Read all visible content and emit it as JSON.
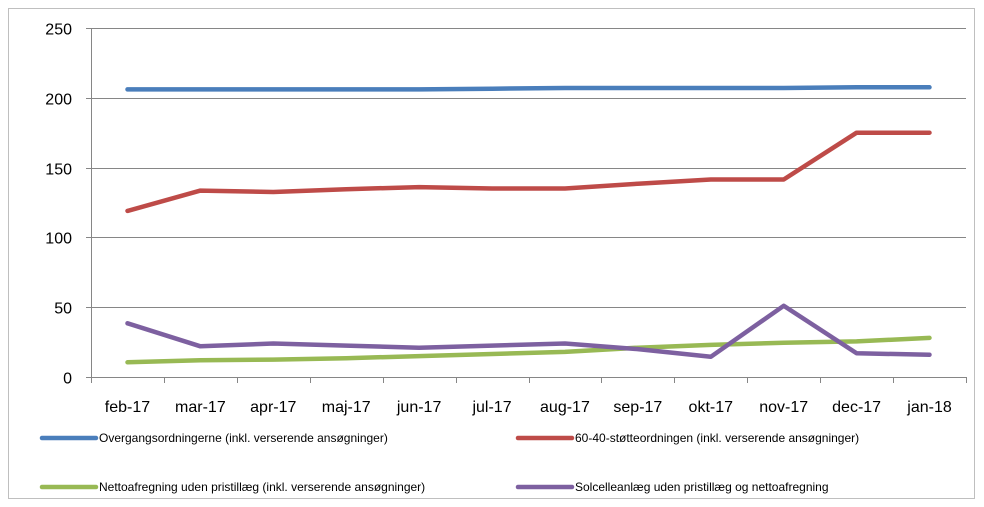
{
  "chart_data": {
    "type": "line",
    "title": "",
    "xlabel": "",
    "ylabel": "",
    "categories": [
      "feb-17",
      "mar-17",
      "apr-17",
      "maj-17",
      "jun-17",
      "jul-17",
      "aug-17",
      "sep-17",
      "okt-17",
      "nov-17",
      "dec-17",
      "jan-18"
    ],
    "ylim": [
      0,
      250
    ],
    "yticks": [
      0,
      50,
      100,
      150,
      200,
      250
    ],
    "grid": true,
    "legend_position": "bottom",
    "series": [
      {
        "name": "Overgangsordningerne (inkl. verserende ansøgninger)",
        "color": "#4a7ebb",
        "values": [
          206,
          206,
          206,
          206,
          206,
          206.5,
          207,
          207,
          207,
          207,
          207.5,
          207.5
        ]
      },
      {
        "name": "60-40-støtteordningen (inkl. verserende ansøgninger)",
        "color": "#be4b48",
        "values": [
          119,
          133.5,
          132.5,
          134.5,
          136,
          135,
          135,
          138.5,
          141.5,
          141.5,
          175,
          175
        ]
      },
      {
        "name": "Nettoafregning uden pristillæg (inkl. verserende ansøgninger)",
        "color": "#98b954",
        "values": [
          10.5,
          12,
          12.5,
          13.5,
          15,
          16.5,
          18,
          21,
          23,
          24.5,
          25.5,
          28
        ]
      },
      {
        "name": "Solcelleanlæg uden pristillæg og nettoafregning",
        "color": "#7d60a0",
        "values": [
          38.5,
          22,
          24,
          22.5,
          21,
          22.5,
          24,
          20,
          14.5,
          51,
          17,
          16
        ]
      }
    ]
  }
}
